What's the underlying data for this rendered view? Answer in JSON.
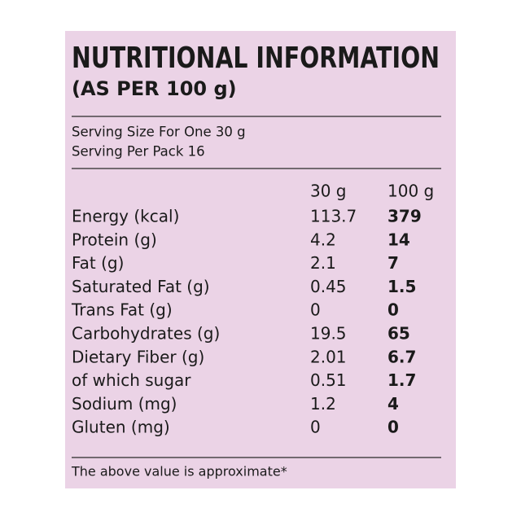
{
  "header": {
    "title": "NUTRITIONAL INFORMATION",
    "subtitle": "(AS PER 100 g)"
  },
  "serving": {
    "size": "Serving Size For One 30 g",
    "per_pack": "Serving Per Pack 16"
  },
  "table": {
    "columns": [
      "30 g",
      "100 g"
    ],
    "rows": [
      [
        "Energy (kcal)",
        113.7,
        379
      ],
      [
        "Protein (g)",
        4.2,
        14
      ],
      [
        "Fat (g)",
        2.1,
        7
      ],
      [
        "Saturated Fat (g)",
        0.45,
        1.5
      ],
      [
        "Trans Fat (g)",
        0,
        0
      ],
      [
        "Carbohydrates (g)",
        19.5,
        65
      ],
      [
        "Dietary Fiber (g)",
        2.01,
        6.7
      ],
      [
        "of which sugar",
        0.51,
        1.7
      ],
      [
        "Sodium (mg)",
        1.2,
        4
      ],
      [
        "Gluten (mg)",
        0,
        0
      ]
    ]
  },
  "footer": {
    "note": "The above value is approximate*"
  }
}
